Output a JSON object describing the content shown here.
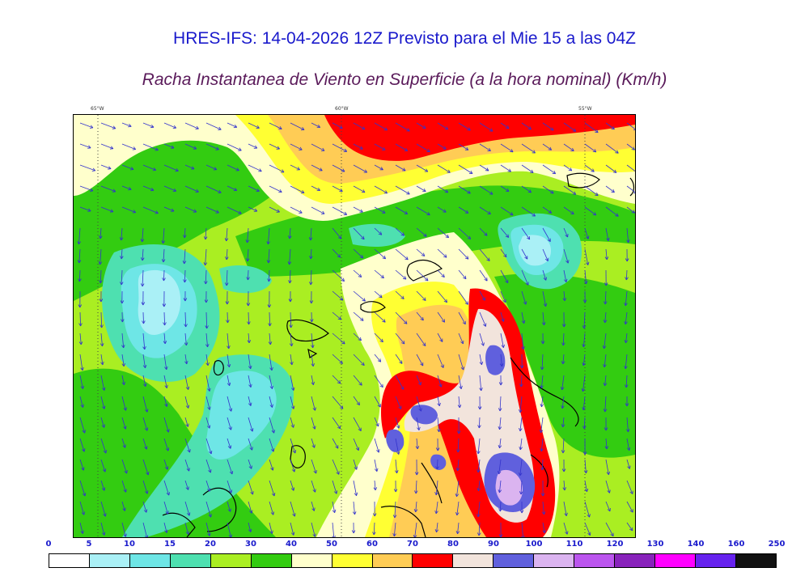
{
  "title": "HRES-IFS: 14-04-2026 12Z Previsto para el Mie 15 a las 04Z",
  "subtitle": "Racha Instantanea de Viento en Superficie (a la hora nominal) (Km/h)",
  "longitude_labels": [
    "65°W",
    "60°W",
    "55°W"
  ],
  "colorbar": {
    "ticks": [
      "0",
      "5",
      "10",
      "15",
      "20",
      "30",
      "40",
      "50",
      "60",
      "70",
      "80",
      "90",
      "100",
      "110",
      "120",
      "130",
      "140",
      "160",
      "250"
    ],
    "colors": [
      "#ffffff",
      "#aaf0f6",
      "#6ee6e6",
      "#4ee0b0",
      "#aaee22",
      "#33cc11",
      "#ffffcc",
      "#ffff33",
      "#ffcc55",
      "#ff0000",
      "#f2e4dc",
      "#6060dd",
      "#dbb4f0",
      "#bb55ee",
      "#8822bb",
      "#ff00ff",
      "#6622ee",
      "#111111"
    ]
  }
}
